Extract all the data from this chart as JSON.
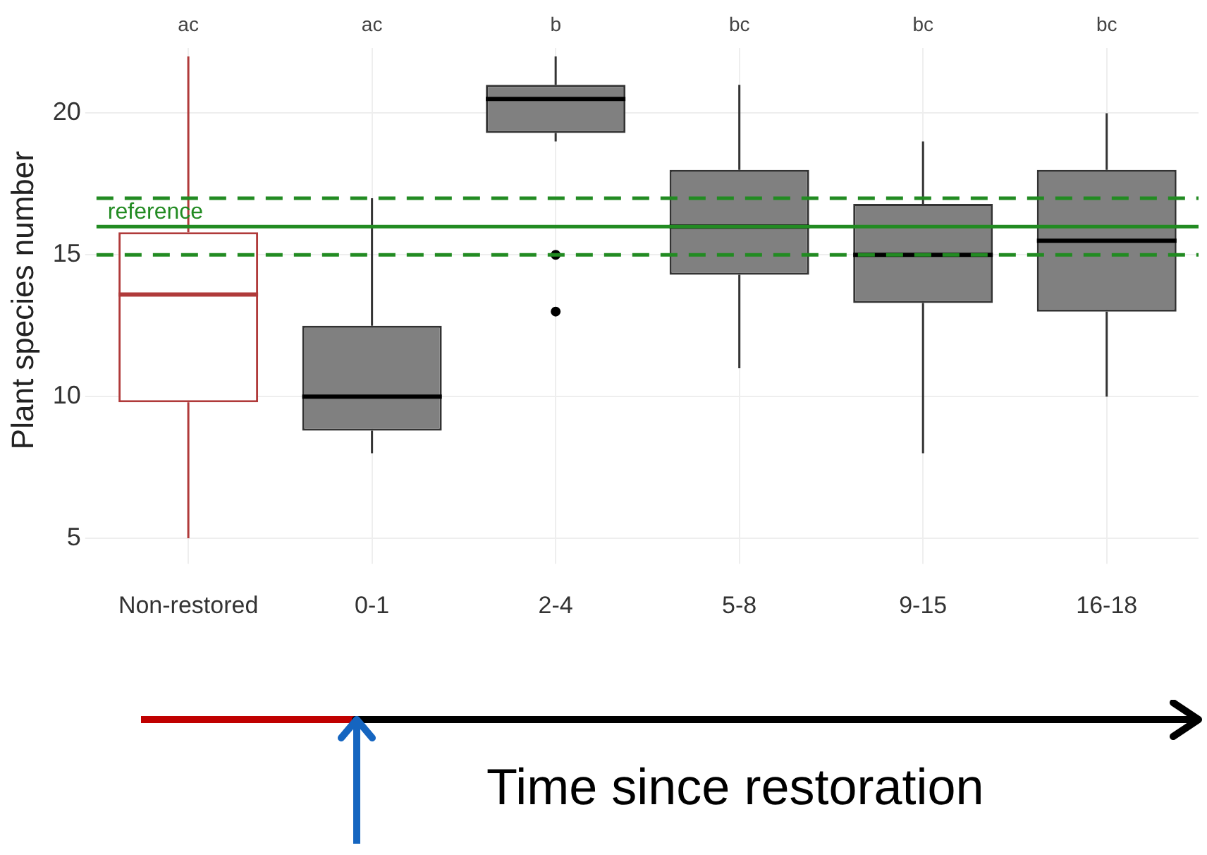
{
  "chart_data": {
    "type": "box",
    "ylabel": "Plant species number",
    "categories": [
      "Non-restored",
      "0-1",
      "2-4",
      "5-8",
      "9-15",
      "16-18"
    ],
    "colors": [
      "#b03a3a",
      "#808080",
      "#808080",
      "#808080",
      "#808080",
      "#808080"
    ],
    "boxes": [
      {
        "low": 5,
        "q1": 9.8,
        "median": 13.6,
        "q3": 15.8,
        "high": 22
      },
      {
        "low": 8,
        "q1": 8.8,
        "median": 10,
        "q3": 12.5,
        "high": 17
      },
      {
        "low": 19,
        "q1": 19.3,
        "median": 20.5,
        "q3": 21,
        "high": 22,
        "outliers": [
          15,
          13
        ]
      },
      {
        "low": 11,
        "q1": 14.3,
        "median": 16,
        "q3": 18,
        "high": 21
      },
      {
        "low": 8,
        "q1": 13.3,
        "median": 15,
        "q3": 16.8,
        "high": 19
      },
      {
        "low": 10,
        "q1": 13,
        "median": 15.5,
        "q3": 18,
        "high": 20
      }
    ],
    "ylim": [
      4.5,
      22.3
    ],
    "yticks": [
      5,
      10,
      15,
      20
    ],
    "grid": true,
    "legend": false,
    "marker": "circle",
    "ref_lines": [
      {
        "axis": "y",
        "value": 16,
        "label": "reference",
        "color": "#228b22",
        "line_style": "solid"
      },
      {
        "axis": "y",
        "value": 17,
        "color": "#228b22",
        "line_style": "dashed"
      },
      {
        "axis": "y",
        "value": 15,
        "color": "#228b22",
        "line_style": "dashed"
      }
    ],
    "annotations": [
      "ac",
      "ac",
      "b",
      "bc",
      "bc",
      "bc",
      "Time since restoration"
    ]
  }
}
